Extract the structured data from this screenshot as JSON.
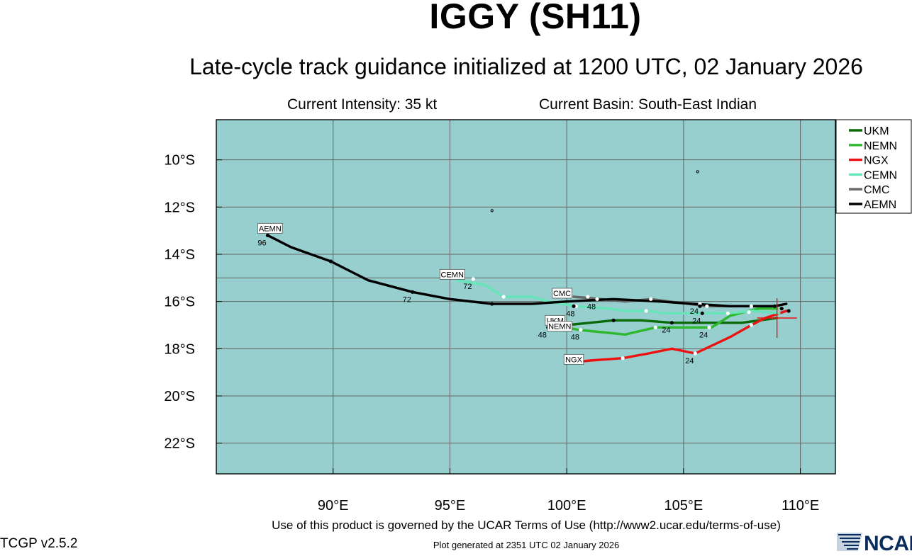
{
  "header": {
    "title": "IGGY (SH11)",
    "subtitle": "Late-cycle track guidance initialized at 1200 UTC, 02 January 2026",
    "intensity": "Current Intensity: 35 kt",
    "basin": "Current Basin: South-East Indian"
  },
  "footer": {
    "terms": "Use of this product is governed by the UCAR Terms of Use (http://www2.ucar.edu/terms-of-use)",
    "version": "TCGP v2.5.2",
    "generated": "Plot generated at 2351 UTC   02 January 2026",
    "logo_text": "NCAR"
  },
  "colors": {
    "ocean": "#97cece",
    "grid": "#666666",
    "marker_white": "#ffffff",
    "marker_black": "#000000"
  },
  "chart_data": {
    "type": "line",
    "title": "IGGY (SH11)",
    "xlabel": "",
    "ylabel": "",
    "xlim": [
      85.0,
      111.5
    ],
    "ylim": [
      -23.3,
      -8.3
    ],
    "xticks": [
      90,
      95,
      100,
      105,
      110
    ],
    "xtick_labels": [
      "90°E",
      "95°E",
      "100°E",
      "105°E",
      "110°E"
    ],
    "yticks": [
      -10,
      -12,
      -14,
      -16,
      -18,
      -20,
      -22
    ],
    "ytick_labels": [
      "10°S",
      "12°S",
      "14°S",
      "16°S",
      "18°S",
      "20°S",
      "22°S"
    ],
    "grid": true,
    "legend_position": "right",
    "current_position": [
      109.0,
      -16.7
    ],
    "islands": [
      {
        "x": 105.6,
        "y": -10.5
      },
      {
        "x": 96.8,
        "y": -12.15
      }
    ],
    "series": [
      {
        "name": "UKM",
        "color": "#0a6a0a",
        "points": [
          [
            109.0,
            -16.7
          ],
          [
            107.5,
            -16.9
          ],
          [
            105.6,
            -16.9
          ],
          [
            104.5,
            -16.9
          ],
          [
            103.2,
            -16.8
          ],
          [
            102.0,
            -16.8
          ],
          [
            101.0,
            -16.9
          ],
          [
            100.0,
            -17.0
          ],
          [
            99.2,
            -17.1
          ]
        ],
        "markers": [
          [
            104.5,
            -16.9,
            "24"
          ],
          [
            102.0,
            -16.8,
            ""
          ],
          [
            99.2,
            -17.1,
            "48"
          ]
        ],
        "end_label": "UKM",
        "end_label_pos": [
          99.5,
          -16.8
        ]
      },
      {
        "name": "NEMN",
        "color": "#2eb82e",
        "points": [
          [
            109.0,
            -16.3
          ],
          [
            108.2,
            -16.3
          ],
          [
            107.0,
            -16.6
          ],
          [
            106.2,
            -17.1
          ],
          [
            104.8,
            -17.1
          ],
          [
            103.8,
            -17.1
          ],
          [
            102.5,
            -17.4
          ],
          [
            101.5,
            -17.3
          ],
          [
            100.5,
            -17.2
          ],
          [
            100.0,
            -17.1
          ]
        ],
        "markers": [
          [
            106.1,
            -17.1,
            "24"
          ],
          [
            103.8,
            -17.1,
            ""
          ],
          [
            100.6,
            -17.2,
            "48"
          ]
        ],
        "end_label": "NEMN",
        "end_label_pos": [
          99.7,
          -17.05
        ]
      },
      {
        "name": "NGX",
        "color": "#ee1111",
        "points": [
          [
            109.4,
            -16.4
          ],
          [
            108.5,
            -16.7
          ],
          [
            107.9,
            -17.0
          ],
          [
            107.0,
            -17.5
          ],
          [
            105.5,
            -18.2
          ],
          [
            104.5,
            -18.0
          ],
          [
            103.5,
            -18.2
          ],
          [
            102.4,
            -18.4
          ],
          [
            101.0,
            -18.5
          ],
          [
            100.0,
            -18.6
          ]
        ],
        "markers": [
          [
            107.9,
            -17.0,
            ""
          ],
          [
            105.5,
            -18.2,
            "24"
          ],
          [
            102.4,
            -18.4,
            ""
          ]
        ],
        "end_label": "NGX",
        "end_label_pos": [
          100.3,
          -18.45
        ]
      },
      {
        "name": "CEMN",
        "color": "#66e6b8",
        "points": [
          [
            109.1,
            -16.5
          ],
          [
            108.0,
            -16.4
          ],
          [
            106.9,
            -16.5
          ],
          [
            105.5,
            -16.5
          ],
          [
            104.2,
            -16.5
          ],
          [
            103.5,
            -16.4
          ],
          [
            102.5,
            -16.4
          ],
          [
            101.8,
            -16.3
          ],
          [
            100.4,
            -16.2
          ],
          [
            99.2,
            -16.0
          ],
          [
            98.5,
            -15.8
          ],
          [
            97.3,
            -15.8
          ],
          [
            96.5,
            -15.3
          ],
          [
            95.3,
            -15.1
          ]
        ],
        "markers": [
          [
            107.8,
            -16.45,
            ""
          ],
          [
            106.9,
            -16.5,
            ""
          ],
          [
            105.8,
            -16.5,
            "24"
          ],
          [
            103.4,
            -16.4,
            ""
          ],
          [
            100.4,
            -16.2,
            "48"
          ],
          [
            97.3,
            -15.8,
            ""
          ],
          [
            96.0,
            -15.05,
            "72"
          ]
        ],
        "end_label": "CEMN",
        "end_label_pos": [
          95.1,
          -14.85
        ]
      },
      {
        "name": "CMC",
        "color": "#666666",
        "points": [
          [
            108.9,
            -16.2
          ],
          [
            107.0,
            -16.2
          ],
          [
            106.0,
            -16.2
          ],
          [
            105.2,
            -16.1
          ],
          [
            103.6,
            -15.9
          ],
          [
            102.5,
            -16.0
          ],
          [
            101.5,
            -15.9
          ],
          [
            100.3,
            -15.8
          ]
        ],
        "markers": [
          [
            107.9,
            -16.2,
            ""
          ],
          [
            106.0,
            -16.2,
            ""
          ],
          [
            105.7,
            -16.1,
            "24"
          ],
          [
            103.6,
            -15.9,
            ""
          ],
          [
            101.3,
            -15.9,
            "48"
          ],
          [
            100.9,
            -15.8,
            ""
          ]
        ],
        "end_label": "CMC",
        "end_label_pos": [
          99.8,
          -15.65
        ]
      },
      {
        "name": "AEMN",
        "color": "#000000",
        "points": [
          [
            109.4,
            -16.1
          ],
          [
            108.9,
            -16.2
          ],
          [
            107.0,
            -16.2
          ],
          [
            105.4,
            -16.1
          ],
          [
            104.0,
            -16.0
          ],
          [
            102.0,
            -15.9
          ],
          [
            100.0,
            -16.0
          ],
          [
            98.5,
            -16.1
          ],
          [
            96.8,
            -16.1
          ],
          [
            95.0,
            -15.9
          ],
          [
            93.4,
            -15.6
          ],
          [
            91.5,
            -15.1
          ],
          [
            89.9,
            -14.3
          ],
          [
            88.2,
            -13.7
          ],
          [
            87.2,
            -13.2
          ]
        ],
        "markers": [
          [
            109.5,
            -16.4,
            ""
          ],
          [
            109.2,
            -16.3,
            ""
          ],
          [
            108.9,
            -16.2,
            ""
          ],
          [
            105.8,
            -16.5,
            ""
          ],
          [
            105.7,
            -16.2,
            ""
          ],
          [
            100.3,
            -16.2,
            ""
          ],
          [
            96.8,
            -16.1,
            ""
          ],
          [
            93.4,
            -15.6,
            "72"
          ],
          [
            89.9,
            -14.3,
            ""
          ],
          [
            87.2,
            -13.2,
            "96"
          ]
        ],
        "end_label": "AEMN",
        "end_label_pos": [
          87.3,
          -12.9
        ]
      }
    ]
  }
}
